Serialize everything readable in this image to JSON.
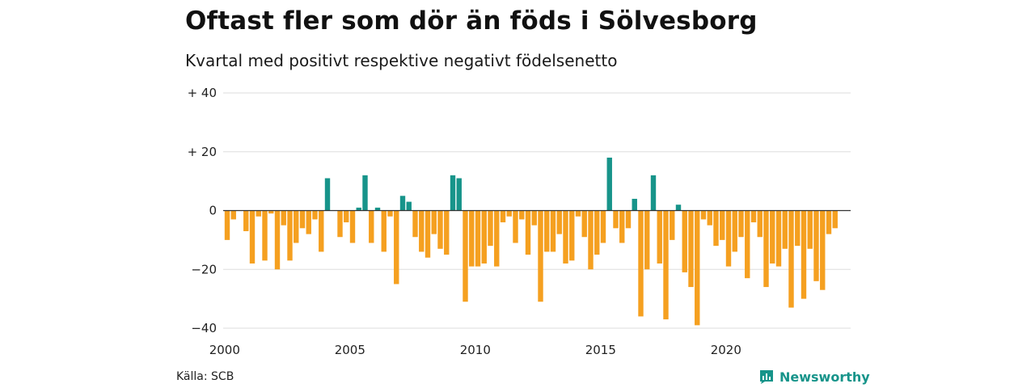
{
  "title": "Oftast fler som dör än föds i Sölvesborg",
  "subtitle": "Kvartal med positivt respektive negativt födelsenetto",
  "source": "Källa: SCB",
  "brand": "Newsworthy",
  "colors": {
    "positive": "#17948a",
    "negative": "#f5a020",
    "grid": "#dddddd",
    "axis": "#333333",
    "brand": "#17948a"
  },
  "chart_data": {
    "type": "bar",
    "title": "Oftast fler som dör än föds i Sölvesborg",
    "subtitle": "Kvartal med positivt respektive negativt födelsenetto",
    "xlabel": "",
    "ylabel": "",
    "ylim": [
      -40,
      40
    ],
    "y_ticks": [
      {
        "value": 40,
        "label": "+ 40"
      },
      {
        "value": 20,
        "label": "+ 20"
      },
      {
        "value": 0,
        "label": "0"
      },
      {
        "value": -20,
        "label": "−20"
      },
      {
        "value": -40,
        "label": "−40"
      }
    ],
    "x_ticks": [
      {
        "year": 2000,
        "label": "2000"
      },
      {
        "year": 2005,
        "label": "2005"
      },
      {
        "year": 2010,
        "label": "2010"
      },
      {
        "year": 2015,
        "label": "2015"
      },
      {
        "year": 2020,
        "label": "2020"
      }
    ],
    "grid": true,
    "start_year": 2000,
    "periods_per_year": 4,
    "values": [
      -10,
      -3,
      0,
      -7,
      -18,
      -2,
      -17,
      -1,
      -20,
      -5,
      -17,
      -11,
      -6,
      -8,
      -3,
      -14,
      11,
      0,
      -9,
      -4,
      -11,
      1,
      12,
      -11,
      1,
      -14,
      -2,
      -25,
      5,
      3,
      -9,
      -14,
      -16,
      -8,
      -13,
      -15,
      12,
      11,
      -31,
      -19,
      -19,
      -18,
      -12,
      -19,
      -4,
      -2,
      -11,
      -3,
      -15,
      -5,
      -31,
      -14,
      -14,
      -8,
      -18,
      -17,
      -2,
      -9,
      -20,
      -15,
      -11,
      18,
      -6,
      -11,
      -6,
      4,
      -36,
      -20,
      12,
      -18,
      -37,
      -10,
      2,
      -21,
      -26,
      -39,
      -3,
      -5,
      -12,
      -10,
      -19,
      -14,
      -9,
      -23,
      -4,
      -9,
      -26,
      -18,
      -19,
      -13,
      -33,
      -12,
      -30,
      -13,
      -24,
      -27,
      -8,
      -6
    ]
  }
}
